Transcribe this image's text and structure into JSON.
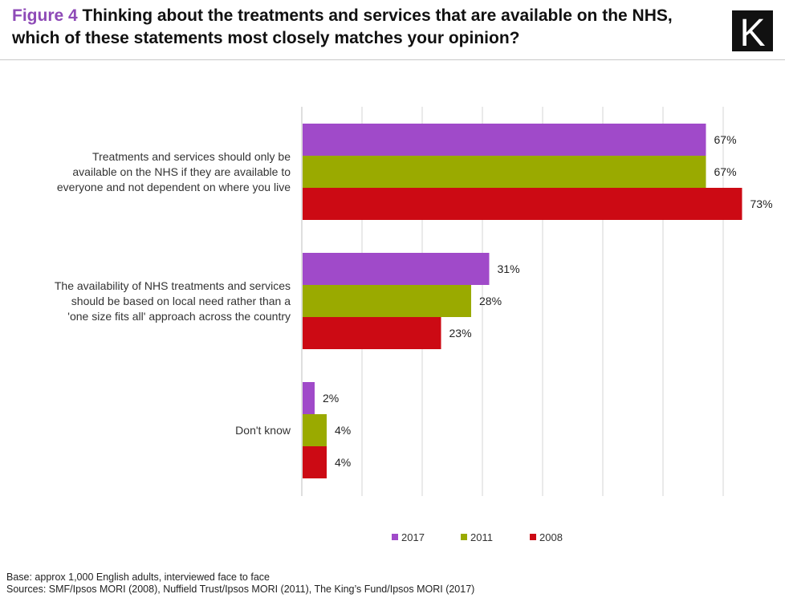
{
  "header": {
    "figure_label": "Figure 4",
    "title": "Thinking about the treatments and services that are available on the NHS, which of these statements most closely matches your opinion?",
    "logo_letter": "K"
  },
  "chart_data": {
    "type": "bar",
    "orientation": "horizontal",
    "title": "Thinking about the treatments and services that are available on the NHS, which of these statements most closely matches your opinion?",
    "categories": [
      "Treatments and services should only be available on the NHS if they are available to everyone and not dependent on where you live",
      "The availability of NHS treatments and services should be based on local need rather than a 'one size fits all' approach across the country",
      "Don't know"
    ],
    "series": [
      {
        "name": "2017",
        "color": "#a04ac9",
        "values": [
          67,
          31,
          2
        ],
        "labels": [
          "67%",
          "31%",
          "2%"
        ]
      },
      {
        "name": "2011",
        "color": "#9aaa00",
        "values": [
          67,
          28,
          4
        ],
        "labels": [
          "67%",
          "28%",
          "4%"
        ]
      },
      {
        "name": "2008",
        "color": "#cc0a14",
        "values": [
          73,
          23,
          4
        ],
        "labels": [
          "73%",
          "23%",
          "4%"
        ]
      }
    ],
    "xlim": [
      0,
      70
    ],
    "grid": true,
    "legend_position": "bottom-center",
    "xlabel": "",
    "ylabel": ""
  },
  "footer": {
    "base": "Base: approx 1,000 English adults, interviewed face to face",
    "sources": "Sources: SMF/Ipsos MORI (2008), Nuffield Trust/Ipsos MORI (2011), The King’s Fund/Ipsos MORI (2017)"
  }
}
